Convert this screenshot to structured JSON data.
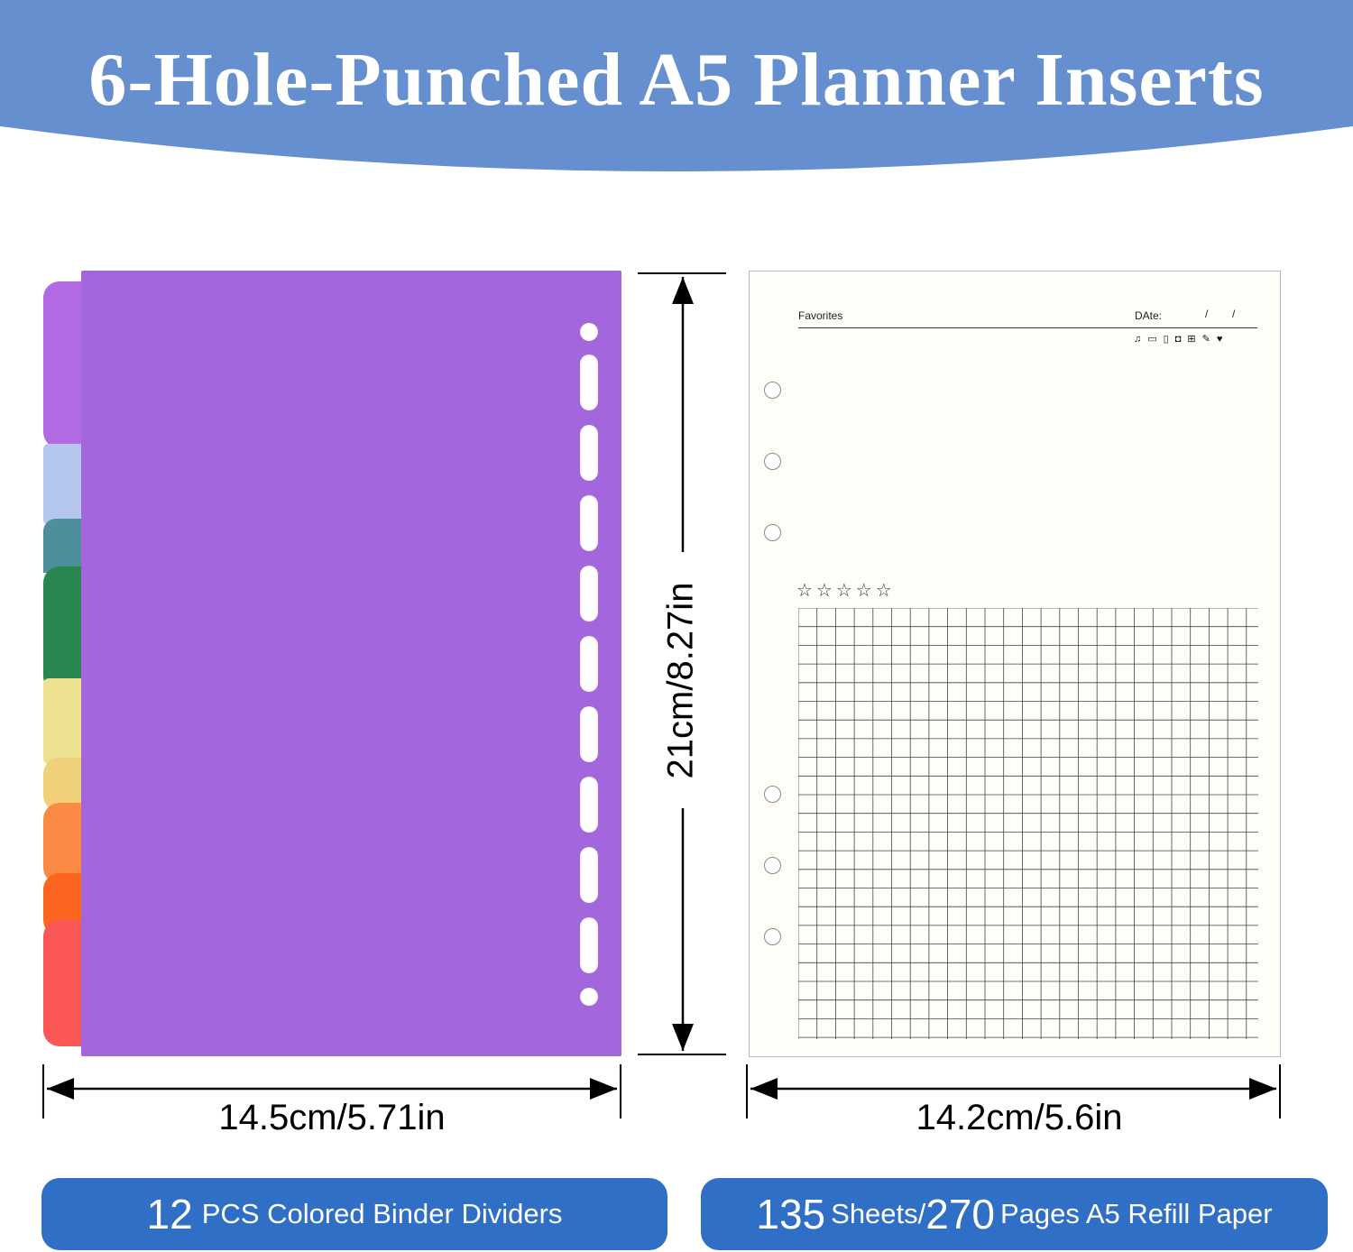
{
  "title": "6-Hole-Punched A5 Planner Inserts",
  "colors": {
    "banner": "#658fcf",
    "divider_main": "#a466dc",
    "pill": "#2f6fc6",
    "tabs": [
      "#b26ae2",
      "#b4c6ee",
      "#4d8f9b",
      "#2a8650",
      "#1f7a45",
      "#ece18e",
      "#f0d07a",
      "#fb8a45",
      "#fb6520",
      "#fb5757"
    ]
  },
  "dimensions": {
    "height": "21cm/8.27in",
    "divider_width": "14.5cm/5.71in",
    "refill_width": "14.2cm/5.6in"
  },
  "refill": {
    "heading": "Favorites",
    "date_label": "DAte:",
    "date_slashes": "/        /",
    "stars": "☆☆☆☆☆",
    "icons": [
      "music-icon",
      "monitor-icon",
      "phone-icon",
      "camera-icon",
      "cart-icon",
      "tool-icon",
      "heart-icon"
    ]
  },
  "pills": {
    "left_count": "12",
    "left_text": "PCS Colored Binder Dividers",
    "right_count1": "135",
    "right_text1": "Sheets/",
    "right_count2": "270",
    "right_text2": "Pages A5 Refill Paper"
  }
}
